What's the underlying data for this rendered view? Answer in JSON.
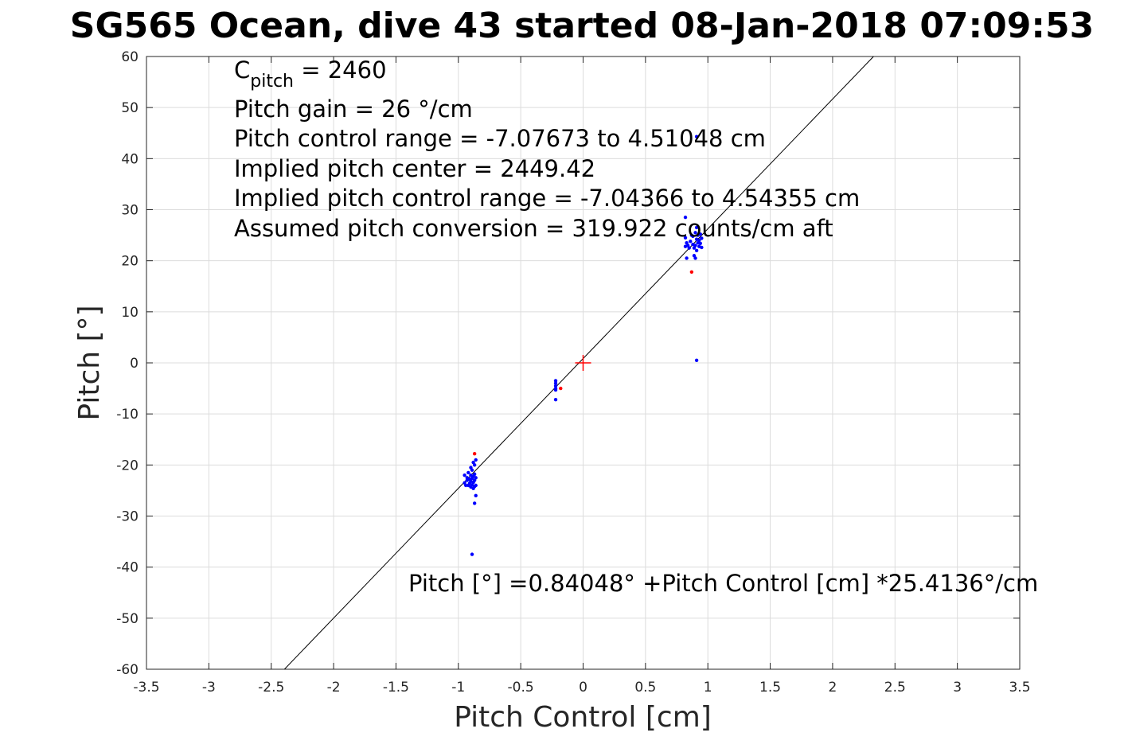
{
  "chart_data": {
    "type": "scatter",
    "title": "SG565 Ocean, dive 43 started 08-Jan-2018 07:09:53",
    "xlabel": "Pitch Control [cm]",
    "ylabel": "Pitch [°]",
    "xlim": [
      -3.5,
      3.5
    ],
    "ylim": [
      -60,
      60
    ],
    "xticks": [
      -3.5,
      -3,
      -2.5,
      -2,
      -1.5,
      -1,
      -0.5,
      0,
      0.5,
      1,
      1.5,
      2,
      2.5,
      3,
      3.5
    ],
    "xtick_labels": [
      "-3.5",
      "-3",
      "-2.5",
      "-2",
      "-1.5",
      "-1",
      "-0.5",
      "0",
      "0.5",
      "1",
      "1.5",
      "2",
      "2.5",
      "3",
      "3.5"
    ],
    "yticks": [
      -60,
      -50,
      -40,
      -30,
      -20,
      -10,
      0,
      10,
      20,
      30,
      40,
      50,
      60
    ],
    "ytick_labels": [
      "-60",
      "-50",
      "-40",
      "-30",
      "-20",
      "-10",
      "0",
      "10",
      "20",
      "30",
      "40",
      "50",
      "60"
    ],
    "grid": true,
    "fit_line": {
      "intercept": 0.84048,
      "slope": 25.4136,
      "color": "#000000"
    },
    "center_marker": {
      "x": 0,
      "y": 0,
      "color": "#ff0000"
    },
    "annotations": {
      "cpitch_base": "C",
      "cpitch_sub": "pitch",
      "cpitch_value": " = 2460",
      "lines": [
        "Pitch gain = 26 °/cm",
        "Pitch control range = -7.07673 to 4.51048 cm",
        "Implied pitch center = 2449.42",
        "Implied pitch control range = -7.04366 to 4.54355 cm",
        "Assumed pitch conversion = 319.922 counts/cm aft"
      ],
      "fit_equation": "Pitch [°] =0.84048° +Pitch Control [cm] *25.4136°/cm"
    },
    "series": [
      {
        "color": "#0000ff",
        "points": [
          [
            -0.95,
            -22.0
          ],
          [
            -0.95,
            -23.5
          ],
          [
            -0.94,
            -24.0
          ],
          [
            -0.93,
            -22.5
          ],
          [
            -0.93,
            -23.0
          ],
          [
            -0.92,
            -21.5
          ],
          [
            -0.92,
            -24.0
          ],
          [
            -0.91,
            -22.8
          ],
          [
            -0.91,
            -23.6
          ],
          [
            -0.9,
            -20.5
          ],
          [
            -0.9,
            -22.0
          ],
          [
            -0.9,
            -23.2
          ],
          [
            -0.9,
            -24.3
          ],
          [
            -0.89,
            -21.0
          ],
          [
            -0.89,
            -22.6
          ],
          [
            -0.89,
            -23.9
          ],
          [
            -0.88,
            -19.5
          ],
          [
            -0.88,
            -22.2
          ],
          [
            -0.88,
            -23.4
          ],
          [
            -0.88,
            -24.6
          ],
          [
            -0.87,
            -20.0
          ],
          [
            -0.87,
            -21.8
          ],
          [
            -0.87,
            -23.0
          ],
          [
            -0.87,
            -24.2
          ],
          [
            -0.86,
            -19.0
          ],
          [
            -0.86,
            -22.5
          ],
          [
            -0.86,
            -24.0
          ],
          [
            -0.86,
            -26.0
          ],
          [
            -0.87,
            -27.5
          ],
          [
            -0.89,
            -37.5
          ],
          [
            -0.22,
            -3.5
          ],
          [
            -0.22,
            -4.0
          ],
          [
            -0.22,
            -4.5
          ],
          [
            -0.22,
            -5.0
          ],
          [
            -0.22,
            -5.3
          ],
          [
            -0.22,
            -7.2
          ],
          [
            0.82,
            22.8
          ],
          [
            0.82,
            24.5
          ],
          [
            0.82,
            28.5
          ],
          [
            0.83,
            20.5
          ],
          [
            0.83,
            23.5
          ],
          [
            0.84,
            23.0
          ],
          [
            0.85,
            22.5
          ],
          [
            0.86,
            23.8
          ],
          [
            0.87,
            25.0
          ],
          [
            0.88,
            23.2
          ],
          [
            0.88,
            24.8
          ],
          [
            0.89,
            21.0
          ],
          [
            0.89,
            22.5
          ],
          [
            0.9,
            20.5
          ],
          [
            0.9,
            23.0
          ],
          [
            0.9,
            25.5
          ],
          [
            0.91,
            22.0
          ],
          [
            0.91,
            24.2
          ],
          [
            0.91,
            26.5
          ],
          [
            0.92,
            23.5
          ],
          [
            0.92,
            25.0
          ],
          [
            0.93,
            22.8
          ],
          [
            0.93,
            24.0
          ],
          [
            0.94,
            23.4
          ],
          [
            0.94,
            25.2
          ],
          [
            0.95,
            22.6
          ],
          [
            0.95,
            24.4
          ],
          [
            0.91,
            44.3
          ],
          [
            0.91,
            0.5
          ]
        ]
      },
      {
        "color": "#ff0000",
        "points": [
          [
            -0.87,
            -17.8
          ],
          [
            -0.18,
            -5.0
          ],
          [
            0.87,
            17.8
          ]
        ]
      }
    ]
  }
}
